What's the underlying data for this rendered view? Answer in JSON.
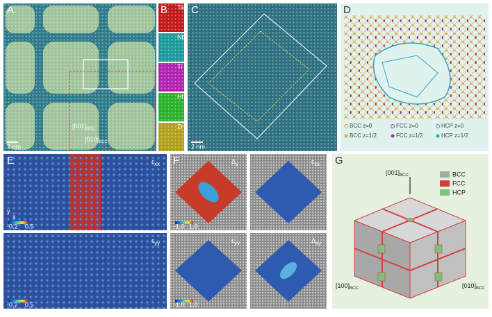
{
  "panels": [
    "A",
    "B",
    "C",
    "D",
    "E",
    "F",
    "G"
  ],
  "panel_a": {
    "scale_bar": "2 nm",
    "axis_up": {
      "index": "[001]",
      "sub": "BCC"
    },
    "axis_right": {
      "index": "[010]",
      "sub": "BCC"
    }
  },
  "panel_b": {
    "elements": [
      "Ta",
      "Nb",
      "Ti",
      "Hf",
      "Zr"
    ]
  },
  "panel_c": {
    "scale_bar": "2 nm"
  },
  "panel_d": {
    "legend": [
      "BCC z=0",
      "FCC z=0",
      "HCP z=0",
      "BCC z=1/2",
      "FCC z=1/2",
      "HCP z=1/2"
    ]
  },
  "panel_e": {
    "maps": [
      {
        "symbol": "ε",
        "sub": "xx"
      },
      {
        "symbol": "ε",
        "sub": "yy"
      }
    ],
    "colorbar": [
      "-0.2",
      "0.5"
    ],
    "axes": [
      "y",
      "x"
    ]
  },
  "panel_f": {
    "maps": [
      {
        "symbol": "Δ",
        "sub": "γ"
      },
      {
        "symbol": "ε",
        "sub": "xx"
      },
      {
        "symbol": "ε",
        "sub": "yy"
      },
      {
        "symbol": "Δ",
        "sub": "xy"
      }
    ],
    "colorbar": [
      "-1.0",
      "1.0"
    ]
  },
  "panel_g": {
    "legend": [
      "BCC",
      "FCC",
      "HCP"
    ],
    "axes": [
      {
        "index": "[001]",
        "sub": "BCC"
      },
      {
        "index": "[100]",
        "sub": "BCC"
      },
      {
        "index": "[010]",
        "sub": "BCC"
      }
    ]
  }
}
